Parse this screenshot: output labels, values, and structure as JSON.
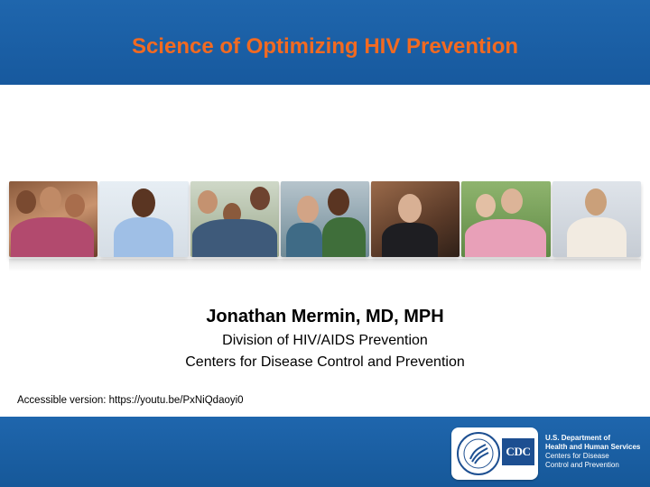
{
  "header": {
    "title": "Science of Optimizing HIV Prevention"
  },
  "photos": [
    {
      "icon": "group-of-women-photo"
    },
    {
      "icon": "man-in-tie-photo"
    },
    {
      "icon": "group-of-friends-photo"
    },
    {
      "icon": "two-men-photo"
    },
    {
      "icon": "woman-smiling-photo"
    },
    {
      "icon": "older-couple-photo"
    },
    {
      "icon": "young-man-photo"
    }
  ],
  "presenter": {
    "name": "Jonathan Mermin, MD, MPH",
    "division": "Division of HIV/AIDS Prevention",
    "organization": "Centers for Disease Control and Prevention"
  },
  "accessible_note": "Accessible version: https://youtu.be/PxNiQdaoyi0",
  "footer": {
    "cdc_logo_text": "CDC",
    "agency_line1": "U.S. Department of",
    "agency_line2": "Health and Human Services",
    "agency_line3": "Centers for Disease",
    "agency_line4": "Control and Prevention"
  },
  "colors": {
    "banner_blue": "#1f66ad",
    "title_orange": "#f26a21"
  }
}
